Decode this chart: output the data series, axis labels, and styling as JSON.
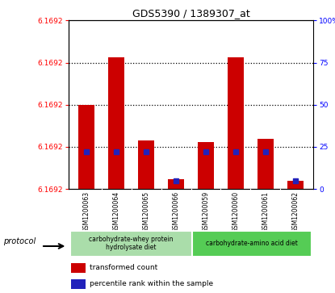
{
  "title": "GDS5390 / 1389307_at",
  "samples": [
    "GSM1200063",
    "GSM1200064",
    "GSM1200065",
    "GSM1200066",
    "GSM1200059",
    "GSM1200060",
    "GSM1200061",
    "GSM1200062"
  ],
  "bar_heights_pct": [
    50,
    78,
    29,
    6,
    28,
    78,
    30,
    5
  ],
  "percentile_ranks": [
    22,
    22,
    22,
    5,
    22,
    22,
    22,
    5
  ],
  "ytick_left_labels": [
    "6.1692",
    "6.1692",
    "6.1692",
    "6.1692",
    "6.1692"
  ],
  "ytick_right_labels": [
    "0",
    "25",
    "50",
    "75",
    "100%"
  ],
  "ytick_positions": [
    0,
    25,
    50,
    75,
    100
  ],
  "bar_color": "#cc0000",
  "dot_color": "#2222bb",
  "group1_label": "carbohydrate-whey protein\nhydrolysate diet",
  "group2_label": "carbohydrate-amino acid diet",
  "group1_color": "#aaddaa",
  "group2_color": "#55cc55",
  "sample_bg_color": "#cccccc",
  "legend1": "transformed count",
  "legend2": "percentile rank within the sample"
}
